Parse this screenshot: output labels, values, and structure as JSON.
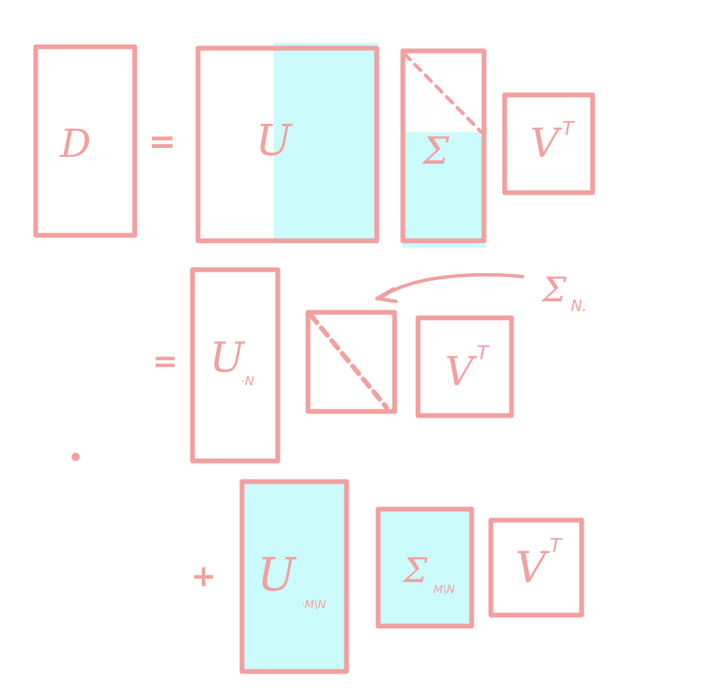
{
  "row1": {
    "d_label": "D",
    "eq": "=",
    "u_label": "U",
    "sigma_label": "Σ",
    "vt_label": "V",
    "vt_sup": "T"
  },
  "row2": {
    "eq": "=",
    "u_label": "U",
    "u_sub": "·N",
    "sigma_annot": "Σ",
    "sigma_annot_sub": "N.",
    "vt_label": "V",
    "vt_sup": "T"
  },
  "row3": {
    "plus": "+",
    "u_label": "U",
    "u_sub": "·M\\N",
    "sigma_label": "Σ",
    "sigma_sub": "M\\N",
    "vt_label": "V",
    "vt_sup": "T"
  },
  "colors": {
    "stroke": "#f2a0a0",
    "highlight": "#c9fbfb"
  }
}
